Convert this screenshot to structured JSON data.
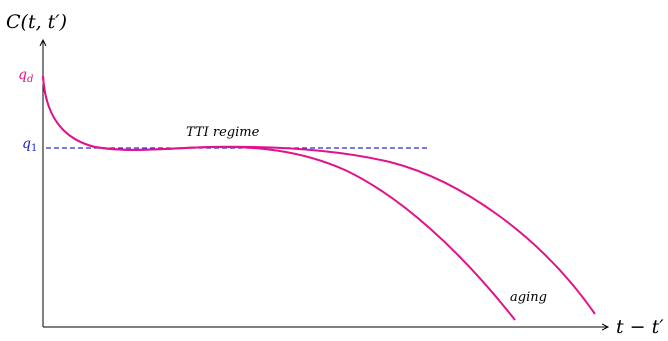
{
  "axes": {
    "y_label": "C(t, t′)",
    "x_label": "t − t′",
    "axis_color": "#000000"
  },
  "levels": {
    "qd": {
      "label": "q",
      "subscript": "d",
      "color": "#e6148c"
    },
    "q1": {
      "label": "q",
      "subscript": "1",
      "color": "#1f1fd6"
    }
  },
  "annotations": {
    "regime": "TTI regime",
    "aging": "aging"
  },
  "curves": {
    "color": "#e0138a",
    "count": 2,
    "q1_line_color": "#2a2ae6",
    "q1_line_style": "dashed"
  }
}
